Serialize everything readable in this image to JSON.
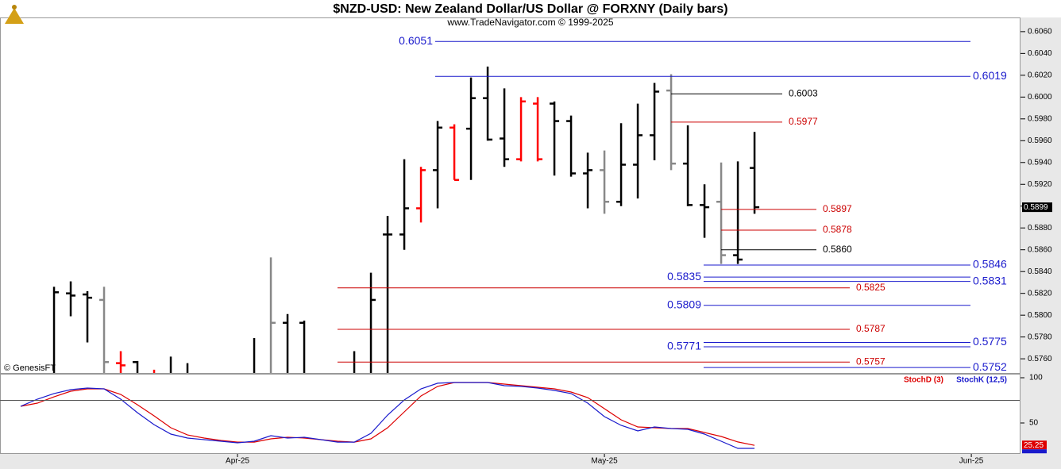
{
  "chart_data": {
    "type": "ohlc",
    "title": "$NZD-USD:  New Zealand Dollar/US Dollar @ FORXNY  (Daily bars)",
    "subtitle": "www.TradeNavigator.com © 1999-2025",
    "copyright": "© GenesisFT",
    "xlim": [
      -1.24,
      59.9
    ],
    "xticks": [
      {
        "value": 13,
        "label": "Apr-25"
      },
      {
        "value": 35,
        "label": "May-25"
      },
      {
        "value": 57,
        "label": "Jun-25"
      }
    ],
    "ylim": [
      0.5747,
      0.6073
    ],
    "yticks": [
      {
        "value": 0.576,
        "label": "0.5760"
      },
      {
        "value": 0.578,
        "label": "0.5780"
      },
      {
        "value": 0.58,
        "label": "0.5800"
      },
      {
        "value": 0.582,
        "label": "0.5820"
      },
      {
        "value": 0.584,
        "label": "0.5840"
      },
      {
        "value": 0.586,
        "label": "0.5860"
      },
      {
        "value": 0.588,
        "label": "0.5880"
      },
      {
        "value": 0.59,
        "label": "0.5900"
      },
      {
        "value": 0.592,
        "label": "0.5920"
      },
      {
        "value": 0.594,
        "label": "0.5940"
      },
      {
        "value": 0.596,
        "label": "0.5960"
      },
      {
        "value": 0.598,
        "label": "0.5980"
      },
      {
        "value": 0.6,
        "label": "0.6000"
      },
      {
        "value": 0.602,
        "label": "0.6020"
      },
      {
        "value": 0.604,
        "label": "0.6040"
      },
      {
        "value": 0.606,
        "label": "0.6060"
      }
    ],
    "bars": [
      null,
      null,
      {
        "o": null,
        "h": 0.5826,
        "l": null,
        "c": 0.5821,
        "color": "#000000"
      },
      {
        "o": 0.582,
        "h": 0.5831,
        "l": 0.5799,
        "c": 0.5818,
        "color": "#000000"
      },
      {
        "o": 0.5819,
        "h": 0.5822,
        "l": 0.5775,
        "c": 0.5816,
        "color": "#000000"
      },
      {
        "o": 0.5814,
        "h": 0.5826,
        "l": null,
        "c": 0.5757,
        "color": "#888888"
      },
      {
        "o": 0.5756,
        "h": 0.5767,
        "l": null,
        "c": 0.5754,
        "color": "#ff0000"
      },
      {
        "o": 0.5757,
        "h": 0.5758,
        "l": null,
        "c": null,
        "color": "#000000"
      },
      {
        "o": null,
        "h": 0.575,
        "l": null,
        "c": null,
        "color": "#ff0000"
      },
      {
        "o": null,
        "h": 0.5762,
        "l": null,
        "c": null,
        "color": "#000000"
      },
      {
        "o": null,
        "h": 0.5756,
        "l": null,
        "c": null,
        "color": "#000000"
      },
      null,
      null,
      null,
      {
        "o": null,
        "h": 0.5779,
        "l": null,
        "c": null,
        "color": "#000000"
      },
      {
        "o": null,
        "h": 0.5853,
        "l": null,
        "c": 0.5793,
        "color": "#888888"
      },
      {
        "o": 0.5793,
        "h": 0.5801,
        "l": null,
        "c": null,
        "color": "#000000"
      },
      {
        "o": 0.5793,
        "h": 0.5795,
        "l": null,
        "c": null,
        "color": "#000000"
      },
      null,
      null,
      {
        "o": null,
        "h": 0.5767,
        "l": null,
        "c": null,
        "color": "#000000"
      },
      {
        "o": null,
        "h": 0.5839,
        "l": null,
        "c": 0.5814,
        "color": "#000000"
      },
      {
        "o": 0.5874,
        "h": 0.5891,
        "l": null,
        "c": 0.5874,
        "color": "#000000"
      },
      {
        "o": 0.5874,
        "h": 0.5943,
        "l": 0.586,
        "c": 0.5898,
        "color": "#000000"
      },
      {
        "o": 0.5898,
        "h": 0.5936,
        "l": 0.5885,
        "c": 0.5933,
        "color": "#ff0000"
      },
      {
        "o": 0.5933,
        "h": 0.5978,
        "l": 0.5898,
        "c": 0.5972,
        "color": "#000000"
      },
      {
        "o": 0.5972,
        "h": 0.5975,
        "l": 0.5924,
        "c": 0.5924,
        "color": "#ff0000"
      },
      {
        "o": 0.5971,
        "h": 0.6018,
        "l": 0.5924,
        "c": 0.5999,
        "color": "#000000"
      },
      {
        "o": 0.5999,
        "h": 0.6028,
        "l": 0.596,
        "c": 0.5961,
        "color": "#000000"
      },
      {
        "o": 0.5962,
        "h": 0.6008,
        "l": 0.5936,
        "c": 0.5943,
        "color": "#000000"
      },
      {
        "o": 0.5943,
        "h": 0.6,
        "l": 0.5941,
        "c": 0.5996,
        "color": "#ff0000"
      },
      {
        "o": 0.5994,
        "h": 0.6,
        "l": 0.5941,
        "c": 0.5943,
        "color": "#ff0000"
      },
      {
        "o": 0.5994,
        "h": 0.5996,
        "l": 0.5928,
        "c": 0.5978,
        "color": "#000000"
      },
      {
        "o": 0.5978,
        "h": 0.5983,
        "l": 0.5927,
        "c": 0.593,
        "color": "#000000"
      },
      {
        "o": 0.593,
        "h": 0.5949,
        "l": 0.5898,
        "c": 0.5933,
        "color": "#000000"
      },
      {
        "o": 0.5933,
        "h": 0.5951,
        "l": 0.5893,
        "c": 0.5904,
        "color": "#888888"
      },
      {
        "o": 0.5904,
        "h": 0.5976,
        "l": 0.59,
        "c": 0.5938,
        "color": "#000000"
      },
      {
        "o": 0.5938,
        "h": 0.5994,
        "l": 0.5907,
        "c": 0.5965,
        "color": "#000000"
      },
      {
        "o": 0.5965,
        "h": 0.6013,
        "l": 0.5942,
        "c": 0.6005,
        "color": "#000000"
      },
      {
        "o": 0.6006,
        "h": 0.6021,
        "l": 0.5933,
        "c": 0.5939,
        "color": "#888888"
      },
      {
        "o": 0.5939,
        "h": 0.5974,
        "l": 0.59,
        "c": 0.5901,
        "color": "#000000"
      },
      {
        "o": 0.5901,
        "h": 0.592,
        "l": 0.5871,
        "c": 0.5899,
        "color": "#000000"
      },
      {
        "o": 0.5904,
        "h": 0.594,
        "l": 0.5847,
        "c": 0.5855,
        "color": "#888888"
      },
      {
        "o": 0.5855,
        "h": 0.5941,
        "l": 0.5847,
        "c": 0.5851,
        "color": "#000000"
      },
      {
        "o": 0.5935,
        "h": 0.5968,
        "l": 0.5893,
        "c": 0.5899,
        "color": "#000000"
      }
    ],
    "levels": [
      {
        "value": 0.6051,
        "color": "#1a1acc"
      },
      {
        "value": 0.6019,
        "color": "#1a1acc"
      },
      {
        "value": 0.6003,
        "color": "#000000"
      },
      {
        "value": 0.5977,
        "color": "#cc0000"
      },
      {
        "value": 0.5897,
        "color": "#cc0000"
      },
      {
        "value": 0.5878,
        "color": "#cc0000"
      },
      {
        "value": 0.586,
        "label": "0.5860",
        "color": "#000000"
      },
      {
        "value": 0.5846,
        "color": "#1a1acc"
      },
      {
        "value": 0.5835,
        "color": "#1a1acc"
      },
      {
        "value": 0.5831,
        "color": "#1a1acc"
      },
      {
        "value": 0.5825,
        "color": "#cc0000"
      },
      {
        "value": 0.5809,
        "color": "#1a1acc"
      },
      {
        "value": 0.5787,
        "color": "#cc0000"
      },
      {
        "value": 0.5775,
        "color": "#1a1acc"
      },
      {
        "value": 0.5771,
        "color": "#1a1acc"
      },
      {
        "value": 0.5757,
        "color": "#cc0000"
      },
      {
        "value": 0.5752,
        "color": "#1a1acc"
      }
    ],
    "y2lim": [
      15.8,
      103.5
    ],
    "y2ticks": [
      100,
      50
    ],
    "y2_reference": 75,
    "series": [
      {
        "name": "StochD (3)",
        "color": "#dd0000",
        "axis": "y2",
        "values": [
          68.4,
          71.9,
          78.9,
          85.1,
          87.7,
          87.7,
          81.6,
          70.2,
          57.9,
          44.7,
          36.8,
          33.3,
          30.7,
          28.9,
          28.9,
          32.5,
          34.2,
          33.3,
          31.6,
          29.8,
          28.9,
          32.5,
          44.7,
          62.3,
          79.8,
          90.4,
          94.7,
          94.7,
          94.7,
          93.0,
          91.2,
          89.5,
          87.7,
          84.2,
          78.1,
          65.8,
          53.5,
          45.6,
          44.7,
          43.9,
          43.9,
          39.5,
          35.1,
          29.0,
          25.25
        ]
      },
      {
        "name": "StochK (12,5)",
        "color": "#1a1acc",
        "axis": "y2",
        "values": [
          68.4,
          76.3,
          82.5,
          86.8,
          88.6,
          87.7,
          76.3,
          61.4,
          48.2,
          37.7,
          33.3,
          31.6,
          29.8,
          28.1,
          29.8,
          36.0,
          33.3,
          34.2,
          31.6,
          28.9,
          28.9,
          38.6,
          58.8,
          75.4,
          87.7,
          93.9,
          94.7,
          94.7,
          94.7,
          91.2,
          90.4,
          88.6,
          86.0,
          82.5,
          71.9,
          57.0,
          47.4,
          41.2,
          45.6,
          43.9,
          43.0,
          37.7,
          29.8,
          21.9,
          21.9
        ]
      }
    ]
  }
}
